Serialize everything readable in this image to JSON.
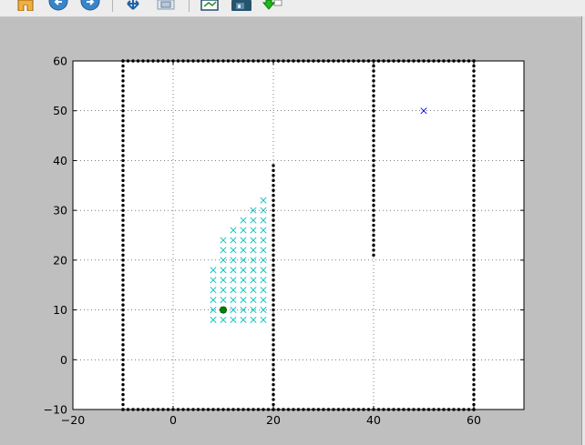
{
  "toolbar": {
    "buttons": [
      {
        "name": "home-button",
        "icon": "home-icon"
      },
      {
        "name": "back-button",
        "icon": "arrow-left-icon"
      },
      {
        "name": "forward-button",
        "icon": "arrow-right-icon"
      },
      {
        "name": "pan-button",
        "icon": "move-icon"
      },
      {
        "name": "zoom-button",
        "icon": "zoom-rect-icon"
      },
      {
        "name": "subplots-button",
        "icon": "subplots-icon"
      },
      {
        "name": "save-button",
        "icon": "floppy-disk-icon"
      },
      {
        "name": "edit-button",
        "icon": "green-arrow-icon"
      }
    ]
  },
  "chart_data": {
    "type": "scatter",
    "xlim": [
      -20,
      70
    ],
    "ylim": [
      -10,
      60
    ],
    "xticks": [
      "−20",
      "0",
      "20",
      "40",
      "60"
    ],
    "xtick_values": [
      -20,
      0,
      20,
      40,
      60
    ],
    "yticks": [
      "60",
      "50",
      "40",
      "30",
      "20",
      "10",
      "0",
      "−10"
    ],
    "ytick_values": [
      60,
      50,
      40,
      30,
      20,
      10,
      0,
      -10
    ],
    "grid": true,
    "colors": {
      "obstacle": "#000000",
      "explored": "#00bfbf",
      "goal": "#0000ff",
      "start": "#008000"
    },
    "obstacles": {
      "marker": "dot",
      "segments": [
        {
          "x": [
            -10,
            60
          ],
          "y": [
            -10,
            -10
          ]
        },
        {
          "x": [
            -10,
            60
          ],
          "y": [
            60,
            60
          ]
        },
        {
          "x": [
            -10,
            -10
          ],
          "y": [
            -10,
            60
          ]
        },
        {
          "x": [
            60,
            60
          ],
          "y": [
            -10,
            60
          ]
        },
        {
          "x": [
            20,
            20
          ],
          "y": [
            -10,
            39
          ]
        },
        {
          "x": [
            40,
            40
          ],
          "y": [
            21,
            60
          ]
        }
      ]
    },
    "explored": {
      "marker": "x",
      "points": [
        [
          8,
          8
        ],
        [
          8,
          10
        ],
        [
          8,
          12
        ],
        [
          8,
          14
        ],
        [
          8,
          16
        ],
        [
          8,
          18
        ],
        [
          10,
          8
        ],
        [
          10,
          10
        ],
        [
          10,
          12
        ],
        [
          10,
          14
        ],
        [
          10,
          16
        ],
        [
          10,
          18
        ],
        [
          10,
          20
        ],
        [
          10,
          22
        ],
        [
          10,
          24
        ],
        [
          12,
          8
        ],
        [
          12,
          10
        ],
        [
          12,
          12
        ],
        [
          12,
          14
        ],
        [
          12,
          16
        ],
        [
          12,
          18
        ],
        [
          12,
          20
        ],
        [
          12,
          22
        ],
        [
          12,
          24
        ],
        [
          12,
          26
        ],
        [
          14,
          8
        ],
        [
          14,
          10
        ],
        [
          14,
          12
        ],
        [
          14,
          14
        ],
        [
          14,
          16
        ],
        [
          14,
          18
        ],
        [
          14,
          20
        ],
        [
          14,
          22
        ],
        [
          14,
          24
        ],
        [
          14,
          26
        ],
        [
          14,
          28
        ],
        [
          16,
          8
        ],
        [
          16,
          10
        ],
        [
          16,
          12
        ],
        [
          16,
          14
        ],
        [
          16,
          16
        ],
        [
          16,
          18
        ],
        [
          16,
          20
        ],
        [
          16,
          22
        ],
        [
          16,
          24
        ],
        [
          16,
          26
        ],
        [
          16,
          28
        ],
        [
          16,
          30
        ],
        [
          18,
          8
        ],
        [
          18,
          10
        ],
        [
          18,
          12
        ],
        [
          18,
          14
        ],
        [
          18,
          16
        ],
        [
          18,
          18
        ],
        [
          18,
          20
        ],
        [
          18,
          22
        ],
        [
          18,
          24
        ],
        [
          18,
          26
        ],
        [
          18,
          28
        ],
        [
          18,
          30
        ],
        [
          18,
          32
        ]
      ]
    },
    "goal": {
      "marker": "x",
      "x": 50,
      "y": 50
    },
    "start": {
      "marker": "circle",
      "x": 10,
      "y": 10
    }
  }
}
